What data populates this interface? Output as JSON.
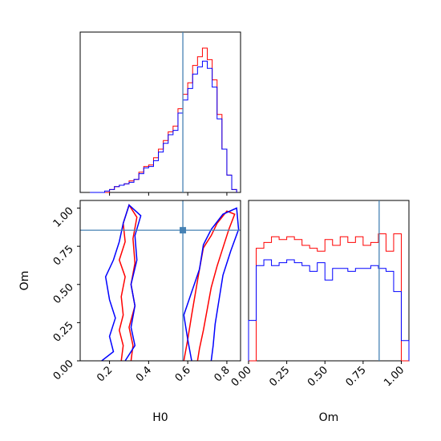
{
  "chart_data": [
    {
      "panel": "H0 marginal",
      "type": "histogram",
      "x_range": [
        0.05,
        0.87
      ],
      "bins": [
        0.1,
        0.125,
        0.15,
        0.175,
        0.2,
        0.225,
        0.25,
        0.275,
        0.3,
        0.325,
        0.35,
        0.375,
        0.4,
        0.425,
        0.45,
        0.475,
        0.5,
        0.525,
        0.55,
        0.575,
        0.6,
        0.625,
        0.65,
        0.675,
        0.7,
        0.725,
        0.75,
        0.775,
        0.8,
        0.825,
        0.85
      ],
      "truth": 0.575,
      "series": [
        {
          "color": "#ff0000",
          "values": [
            0.0,
            0.0,
            0.0,
            0.0,
            0.02,
            0.04,
            0.05,
            0.06,
            0.08,
            0.09,
            0.14,
            0.18,
            0.19,
            0.24,
            0.3,
            0.36,
            0.42,
            0.46,
            0.58,
            0.68,
            0.76,
            0.88,
            0.94,
            1.0,
            0.92,
            0.78,
            0.54,
            0.3,
            0.12,
            0.02
          ]
        },
        {
          "color": "#0000ff",
          "values": [
            0.0,
            0.0,
            0.0,
            0.01,
            0.02,
            0.04,
            0.05,
            0.06,
            0.07,
            0.09,
            0.13,
            0.17,
            0.18,
            0.22,
            0.28,
            0.34,
            0.4,
            0.43,
            0.55,
            0.64,
            0.72,
            0.82,
            0.87,
            0.91,
            0.86,
            0.73,
            0.51,
            0.3,
            0.12,
            0.02
          ]
        }
      ],
      "xticks": []
    },
    {
      "panel": "H0 vs Om joint",
      "type": "contour",
      "xlabel": "H0",
      "ylabel": "Om",
      "xlim": [
        0.05,
        0.87
      ],
      "ylim": [
        0.0,
        1.05
      ],
      "xticks": [
        0.2,
        0.4,
        0.6,
        0.8
      ],
      "xtick_labels": [
        "0.2",
        "0.4",
        "0.6",
        "0.8"
      ],
      "yticks": [
        0.0,
        0.25,
        0.5,
        0.75,
        1.0
      ],
      "ytick_labels": [
        "0.00",
        "0.25",
        "0.50",
        "0.75",
        "1.00"
      ],
      "truth": {
        "x": 0.575,
        "y": 0.855
      },
      "contours": [
        {
          "color": "#ff0000",
          "points": [
            [
              0.26,
              0.0
            ],
            [
              0.27,
              0.1
            ],
            [
              0.25,
              0.2
            ],
            [
              0.27,
              0.3
            ],
            [
              0.26,
              0.42
            ],
            [
              0.28,
              0.55
            ],
            [
              0.25,
              0.66
            ],
            [
              0.28,
              0.78
            ],
            [
              0.27,
              0.9
            ],
            [
              0.3,
              1.02
            ],
            [
              0.34,
              0.94
            ],
            [
              0.32,
              0.8
            ],
            [
              0.33,
              0.64
            ],
            [
              0.31,
              0.5
            ],
            [
              0.33,
              0.36
            ],
            [
              0.3,
              0.22
            ],
            [
              0.32,
              0.1
            ],
            [
              0.31,
              0.0
            ]
          ]
        },
        {
          "color": "#ff0000",
          "points": [
            [
              0.58,
              0.0
            ],
            [
              0.6,
              0.14
            ],
            [
              0.62,
              0.3
            ],
            [
              0.64,
              0.45
            ],
            [
              0.66,
              0.6
            ],
            [
              0.68,
              0.74
            ],
            [
              0.72,
              0.82
            ],
            [
              0.75,
              0.9
            ],
            [
              0.8,
              0.98
            ],
            [
              0.84,
              0.96
            ],
            [
              0.81,
              0.86
            ],
            [
              0.78,
              0.74
            ],
            [
              0.75,
              0.62
            ],
            [
              0.72,
              0.48
            ],
            [
              0.7,
              0.34
            ],
            [
              0.68,
              0.2
            ],
            [
              0.66,
              0.08
            ],
            [
              0.65,
              0.0
            ]
          ]
        },
        {
          "color": "#0000ff",
          "points": [
            [
              0.16,
              0.0
            ],
            [
              0.22,
              0.06
            ],
            [
              0.2,
              0.16
            ],
            [
              0.23,
              0.28
            ],
            [
              0.2,
              0.4
            ],
            [
              0.18,
              0.55
            ],
            [
              0.22,
              0.66
            ],
            [
              0.25,
              0.78
            ],
            [
              0.27,
              0.9
            ],
            [
              0.3,
              1.02
            ],
            [
              0.36,
              0.95
            ],
            [
              0.33,
              0.82
            ],
            [
              0.34,
              0.66
            ],
            [
              0.31,
              0.5
            ],
            [
              0.33,
              0.36
            ],
            [
              0.31,
              0.22
            ],
            [
              0.33,
              0.1
            ],
            [
              0.28,
              0.0
            ]
          ]
        },
        {
          "color": "#0000ff",
          "points": [
            [
              0.62,
              0.0
            ],
            [
              0.6,
              0.14
            ],
            [
              0.58,
              0.3
            ],
            [
              0.62,
              0.45
            ],
            [
              0.66,
              0.6
            ],
            [
              0.68,
              0.76
            ],
            [
              0.72,
              0.86
            ],
            [
              0.78,
              0.96
            ],
            [
              0.85,
              1.0
            ],
            [
              0.86,
              0.86
            ],
            [
              0.82,
              0.72
            ],
            [
              0.78,
              0.56
            ],
            [
              0.76,
              0.4
            ],
            [
              0.74,
              0.24
            ],
            [
              0.73,
              0.1
            ],
            [
              0.72,
              0.0
            ]
          ]
        }
      ]
    },
    {
      "panel": "Om marginal",
      "type": "histogram",
      "xlabel": "Om",
      "x_range": [
        0.0,
        1.05
      ],
      "xticks": [
        0.0,
        0.25,
        0.5,
        0.75,
        1.0
      ],
      "xtick_labels": [
        "0.00",
        "0.25",
        "0.50",
        "0.75",
        "1.00"
      ],
      "bins": [
        0.0,
        0.05,
        0.1,
        0.15,
        0.2,
        0.25,
        0.3,
        0.35,
        0.4,
        0.45,
        0.5,
        0.55,
        0.6,
        0.65,
        0.7,
        0.75,
        0.8,
        0.85,
        0.9,
        0.95,
        1.0,
        1.05
      ],
      "truth": 0.855,
      "series": [
        {
          "color": "#ff0000",
          "values": [
            0.0,
            0.78,
            0.82,
            0.86,
            0.84,
            0.86,
            0.84,
            0.8,
            0.78,
            0.76,
            0.84,
            0.8,
            0.86,
            0.82,
            0.86,
            0.8,
            0.82,
            0.88,
            0.76,
            0.88,
            0.0
          ]
        },
        {
          "color": "#0000ff",
          "values": [
            0.28,
            0.66,
            0.7,
            0.66,
            0.68,
            0.7,
            0.68,
            0.66,
            0.62,
            0.68,
            0.56,
            0.64,
            0.64,
            0.62,
            0.64,
            0.64,
            0.66,
            0.64,
            0.62,
            0.48,
            0.14
          ]
        }
      ]
    }
  ]
}
